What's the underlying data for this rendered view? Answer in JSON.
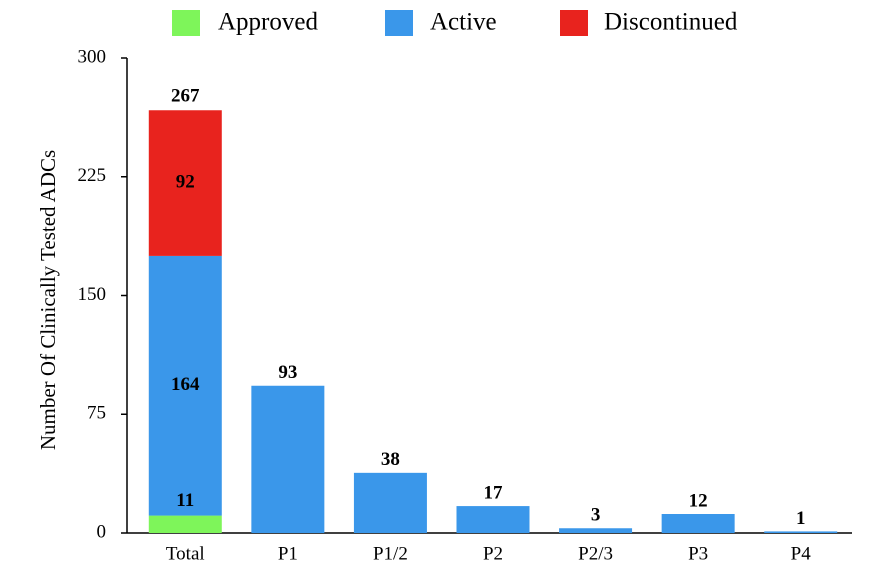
{
  "chart_data": {
    "type": "stacked-bar",
    "y_label": "Number Of Clinically Tested ADCs",
    "categories": [
      "Total",
      "P1",
      "P1/2",
      "P2",
      "P2/3",
      "P3",
      "P4"
    ],
    "series": [
      {
        "name": "Approved",
        "color": "#7ef55a",
        "values": [
          11,
          null,
          null,
          null,
          null,
          null,
          null
        ]
      },
      {
        "name": "Active",
        "color": "#3a97ea",
        "values": [
          164,
          93,
          38,
          17,
          3,
          12,
          1
        ]
      },
      {
        "name": "Discontinued",
        "color": "#e8231e",
        "values": [
          92,
          null,
          null,
          null,
          null,
          null,
          null
        ]
      }
    ],
    "totals": [
      267,
      null,
      null,
      null,
      null,
      null,
      null
    ],
    "ylim": [
      0,
      300
    ],
    "yticks": [
      0,
      75,
      150,
      225,
      300
    ],
    "grid": false,
    "legend": "top"
  }
}
